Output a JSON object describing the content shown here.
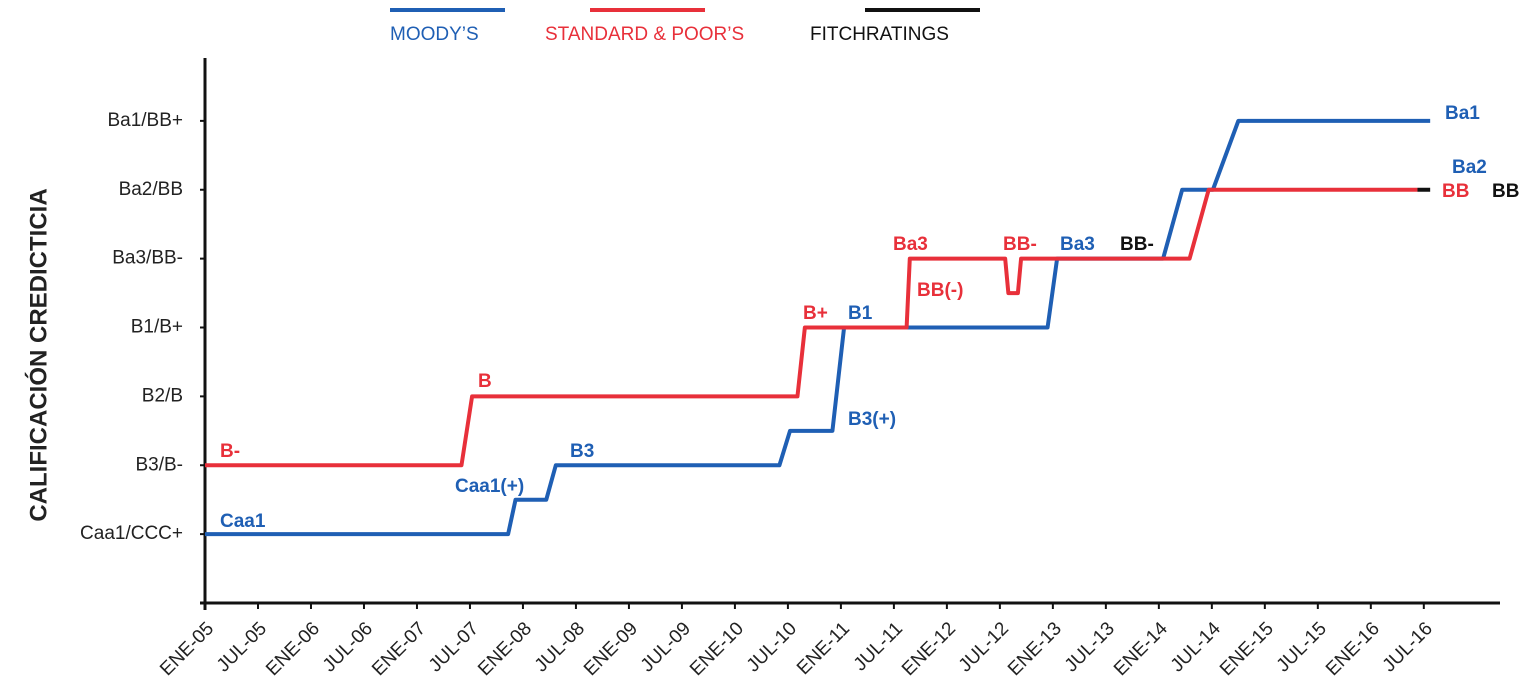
{
  "chart_data": {
    "type": "line",
    "ylabel": "CALIFICACIÓN CREDICTICIA",
    "xlim": [
      2005,
      2017.2
    ],
    "ylim": [
      -1,
      7
    ],
    "xticks": [
      {
        "value": 2005,
        "label": "ENE-05"
      },
      {
        "value": 2005.5,
        "label": "JUL-05"
      },
      {
        "value": 2006,
        "label": "ENE-06"
      },
      {
        "value": 2006.5,
        "label": "JUL-06"
      },
      {
        "value": 2007,
        "label": "ENE-07"
      },
      {
        "value": 2007.5,
        "label": "JUL-07"
      },
      {
        "value": 2008,
        "label": "ENE-08"
      },
      {
        "value": 2008.5,
        "label": "JUL-08"
      },
      {
        "value": 2009,
        "label": "ENE-09"
      },
      {
        "value": 2009.5,
        "label": "JUL-09"
      },
      {
        "value": 2010,
        "label": "ENE-10"
      },
      {
        "value": 2010.5,
        "label": "JUL-10"
      },
      {
        "value": 2011,
        "label": "ENE-11"
      },
      {
        "value": 2011.5,
        "label": "JUL-11"
      },
      {
        "value": 2012,
        "label": "ENE-12"
      },
      {
        "value": 2012.5,
        "label": "JUL-12"
      },
      {
        "value": 2013,
        "label": "ENE-13"
      },
      {
        "value": 2013.5,
        "label": "JUL-13"
      },
      {
        "value": 2014,
        "label": "ENE-14"
      },
      {
        "value": 2014.5,
        "label": "JUL-14"
      },
      {
        "value": 2015,
        "label": "ENE-15"
      },
      {
        "value": 2015.5,
        "label": "JUL-15"
      },
      {
        "value": 2016,
        "label": "ENE-16"
      },
      {
        "value": 2016.5,
        "label": "JUL-16"
      }
    ],
    "yticks": [
      {
        "value": 0,
        "label": "Caa1/CCC+"
      },
      {
        "value": 1,
        "label": "B3/B-"
      },
      {
        "value": 2,
        "label": "B2/B"
      },
      {
        "value": 3,
        "label": "B1/B+"
      },
      {
        "value": 4,
        "label": "Ba3/BB-"
      },
      {
        "value": 5,
        "label": "Ba2/BB"
      },
      {
        "value": 6,
        "label": "Ba1/BB+"
      }
    ],
    "series": [
      {
        "name": "MOODY’S",
        "color": "#1f5fb4",
        "x": [
          2005,
          2007.86,
          2007.93,
          2008.22,
          2008.31,
          2010.42,
          2010.52,
          2010.92,
          2011.03,
          2012.95,
          2013.04,
          2014.04,
          2014.22,
          2014.51,
          2014.75,
          2016.56
        ],
        "values": [
          0,
          0,
          0.5,
          0.5,
          1,
          1,
          1.5,
          1.5,
          3,
          3,
          4,
          4,
          5,
          5,
          6,
          6
        ]
      },
      {
        "name": "STANDARD & POOR’S",
        "color": "#e8303a",
        "x": [
          2005,
          2007.42,
          2007.52,
          2010.59,
          2010.66,
          2011.62,
          2011.65,
          2012.55,
          2012.58,
          2012.67,
          2012.7,
          2014.29,
          2014.47,
          2016.44
        ],
        "values": [
          1,
          1,
          2,
          2,
          3,
          3,
          4,
          4,
          3.5,
          3.5,
          4,
          4,
          5,
          5
        ]
      },
      {
        "name": "FITCHRATINGS",
        "color": "#111111",
        "x": [
          2016.44,
          2016.56
        ],
        "values": [
          5,
          5
        ]
      }
    ],
    "annotations": [
      {
        "text": "B-",
        "color": "#e8303a"
      },
      {
        "text": "Caa1",
        "color": "#1f5fb4"
      },
      {
        "text": "B",
        "color": "#e8303a"
      },
      {
        "text": "Caa1(+)",
        "color": "#1f5fb4"
      },
      {
        "text": "B3",
        "color": "#1f5fb4"
      },
      {
        "text": "B+",
        "color": "#e8303a"
      },
      {
        "text": "B1",
        "color": "#1f5fb4"
      },
      {
        "text": "B3(+)",
        "color": "#1f5fb4"
      },
      {
        "text": "Ba3",
        "color": "#e8303a"
      },
      {
        "text": "BB(-)",
        "color": "#e8303a"
      },
      {
        "text": "BB-",
        "color": "#e8303a"
      },
      {
        "text": "Ba3",
        "color": "#1f5fb4"
      },
      {
        "text": "BB-",
        "color": "#111111"
      },
      {
        "text": "Ba1",
        "color": "#1f5fb4"
      },
      {
        "text": "Ba2",
        "color": "#1f5fb4"
      },
      {
        "text": "BB",
        "color": "#e8303a"
      },
      {
        "text": "BB",
        "color": "#111111"
      }
    ]
  }
}
